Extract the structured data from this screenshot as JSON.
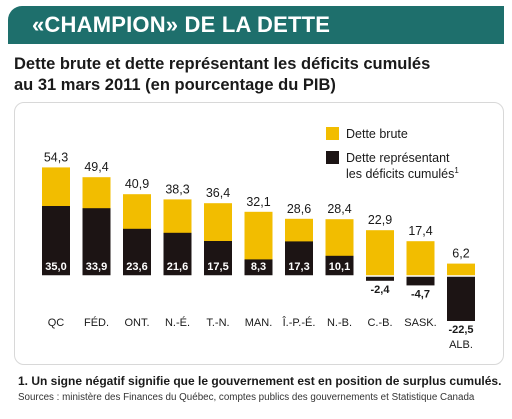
{
  "header": {
    "banner_title": "«CHAMPION» DE LA DETTE",
    "subtitle_line1": "Dette brute et dette représentant les déficits cumulés",
    "subtitle_line2": "au 31 mars 2011 (en pourcentage du PIB)"
  },
  "footer": {
    "footnote": "1. Un signe négatif signifie que le gouvernement est en position de surplus cumulés.",
    "sources": "Sources : ministère des Finances du Québec, comptes publics des gouvernements et Statistique Canada"
  },
  "colors": {
    "banner": "#1e6f6c",
    "gross_debt": "#f2bd00",
    "deficit_debt": "#1c1414"
  },
  "chart_data": {
    "type": "bar",
    "categories": [
      "QC",
      "FÉD.",
      "ONT.",
      "N.-É.",
      "T.-N.",
      "MAN.",
      "Î.-P.-É.",
      "N.-B.",
      "C.-B.",
      "SASK.",
      "ALB."
    ],
    "series": [
      {
        "name": "Dette brute",
        "values": [
          54.3,
          49.4,
          40.9,
          38.3,
          36.4,
          32.1,
          28.6,
          28.4,
          22.9,
          17.4,
          6.2
        ],
        "labels": [
          "54,3",
          "49,4",
          "40,9",
          "38,3",
          "36,4",
          "32,1",
          "28,6",
          "28,4",
          "22,9",
          "17,4",
          "6,2"
        ]
      },
      {
        "name": "Dette représentant les déficits cumulés",
        "footnote_marker": "1",
        "values": [
          35.0,
          33.9,
          23.6,
          21.6,
          17.5,
          8.3,
          17.3,
          10.1,
          -2.4,
          -4.7,
          -22.5
        ],
        "labels": [
          "35,0",
          "33,9",
          "23,6",
          "21,6",
          "17,5",
          "8,3",
          "17,3",
          "10,1",
          "-2,4",
          "-4,7",
          "-22,5"
        ]
      }
    ],
    "ylim": [
      -22.5,
      54.3
    ],
    "grid": false,
    "legend_position": "top-right"
  }
}
